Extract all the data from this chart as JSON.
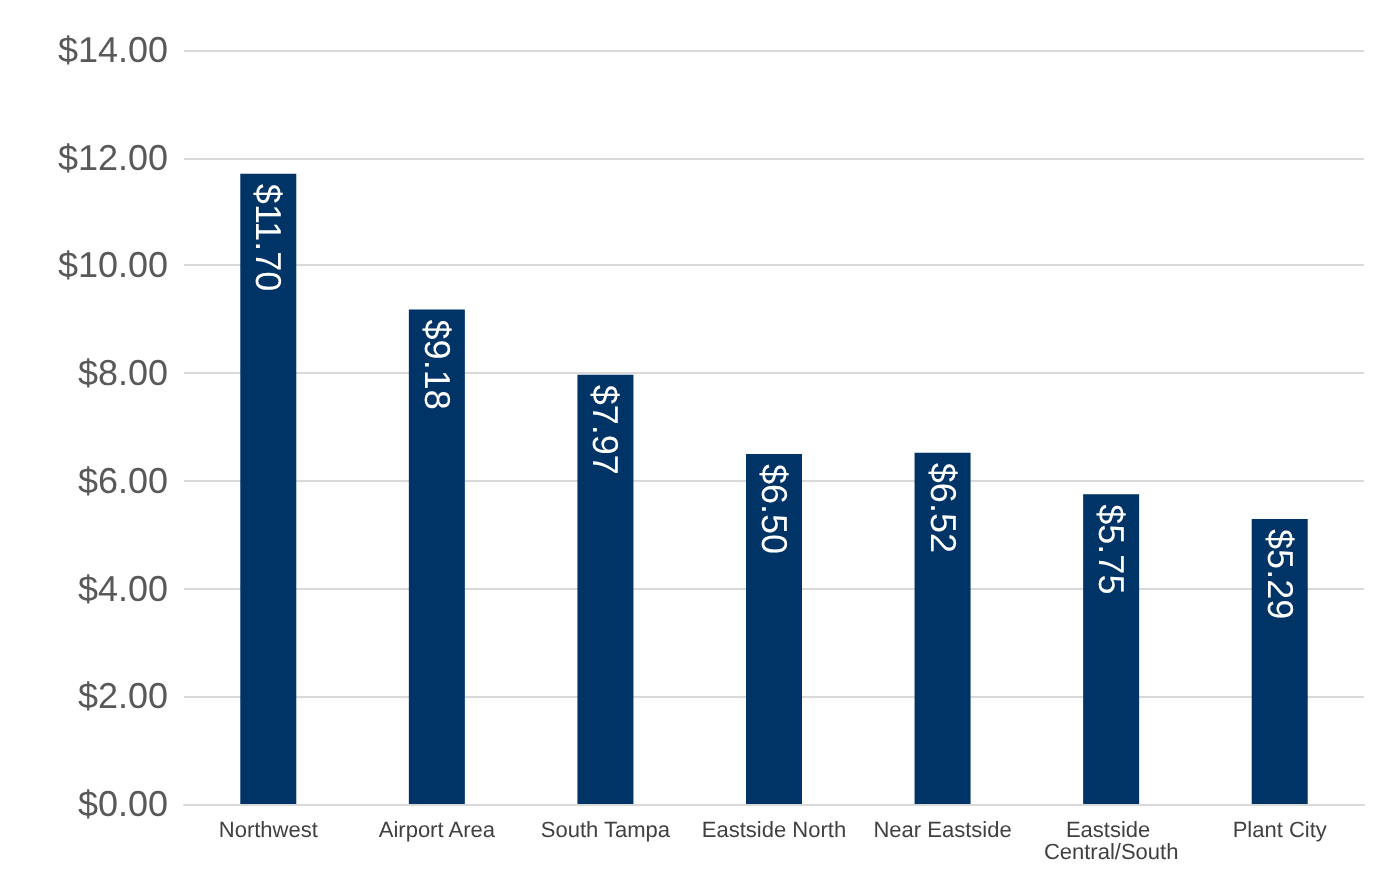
{
  "chart_data": {
    "type": "bar",
    "categories": [
      "Northwest",
      "Airport Area",
      "South Tampa",
      "Eastside North",
      "Near Eastside",
      "Eastside Central/South",
      "Plant City"
    ],
    "series": [
      {
        "color": "#003366",
        "values": [
          11.7,
          9.18,
          7.97,
          6.5,
          6.52,
          5.75,
          5.29
        ],
        "value_labels": [
          "$11.70",
          "$9.18",
          "$7.97",
          "$6.50",
          "$6.52",
          "$5.75",
          "$5.29"
        ]
      }
    ],
    "ylim": [
      0,
      14
    ],
    "yticks": [
      {
        "value": 0,
        "label": "$0.00"
      },
      {
        "value": 2,
        "label": "$2.00"
      },
      {
        "value": 4,
        "label": "$4.00"
      },
      {
        "value": 6,
        "label": "$6.00"
      },
      {
        "value": 8,
        "label": "$8.00"
      },
      {
        "value": 10,
        "label": "$10.00"
      },
      {
        "value": 12,
        "label": "$12.00"
      },
      {
        "value": 14,
        "label": "$14.00"
      }
    ],
    "grid": "y"
  }
}
